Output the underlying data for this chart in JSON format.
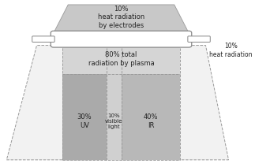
{
  "electrode_label": "10%\nheat radiation\nby electrodes",
  "plasma_label": "80% total\nradiation by plasma",
  "side_label": "10%\nheat radiation",
  "uv_label": "30%\nUV",
  "visible_label": "10%\nvisible\nlight",
  "ir_label": "40%\nIR",
  "electrode_color": "#c8c8c8",
  "electrode_edge": "#999999",
  "lamp_color": "#ffffff",
  "plasma_color_top": "#d8d8d8",
  "plasma_color_bot": "#e8e8e8",
  "uv_color": "#aaaaaa",
  "visible_color_l": "#d4d4d4",
  "visible_color_r": "#c0c0c0",
  "ir_color": "#b4b4b4",
  "outer_fill": "#f0f0f0",
  "dash_color": "#999999",
  "text_color": "#222222",
  "font_size_main": 6.0,
  "font_size_side": 5.5
}
